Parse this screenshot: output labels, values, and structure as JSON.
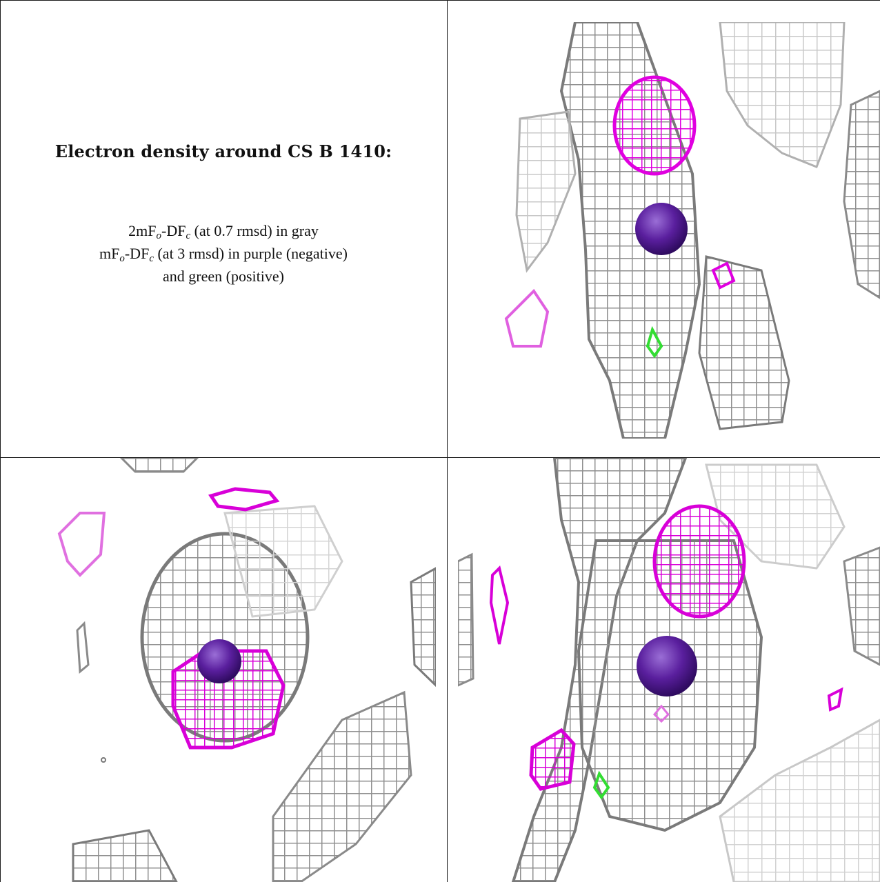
{
  "caption": {
    "title": "Electron density around CS B 1410:",
    "line1": {
      "pre": "2mF",
      "sub1": "o",
      "mid": "-DF",
      "sub2": "c",
      "post": " (at 0.7 rmsd) in gray"
    },
    "line2": {
      "pre": "mF",
      "sub1": "o",
      "mid": "-DF",
      "sub2": "c",
      "post": " (at 3 rmsd) in purple (negative)"
    },
    "line3": "and green (positive)"
  },
  "colors": {
    "mesh_gray": "#9a9a9a",
    "mesh_dark": "#6e6e6e",
    "mesh_light": "#d2d2d2",
    "negative_density": "#e000e0",
    "positive_density": "#33dd33",
    "atom_sphere": "#5a1f9e",
    "border": "#1a1a1a"
  },
  "panels": [
    {
      "name": "caption-panel"
    },
    {
      "name": "view-top-right"
    },
    {
      "name": "view-bottom-left"
    },
    {
      "name": "view-bottom-right"
    }
  ]
}
